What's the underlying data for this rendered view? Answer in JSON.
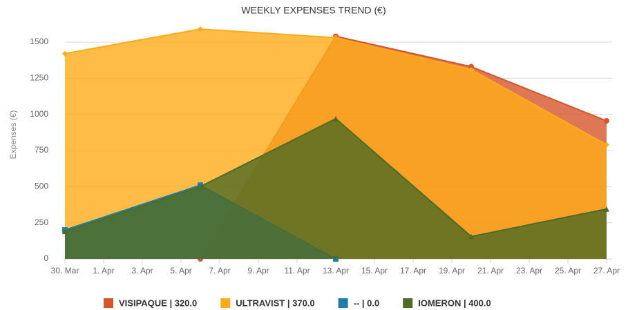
{
  "chart_data": {
    "type": "area",
    "title": "WEEKLY EXPENSES TREND (€)",
    "y_label": "Expenses (€)",
    "x": [
      "03-30",
      "04-06",
      "04-13",
      "04-20",
      "04-27"
    ],
    "xlim": [
      "03-30",
      "04-27"
    ],
    "xticks": [
      {
        "value": "03-30",
        "label": "30. Mar"
      },
      {
        "value": "04-01",
        "label": "1. Apr"
      },
      {
        "value": "04-03",
        "label": "3. Apr"
      },
      {
        "value": "04-05",
        "label": "5. Apr"
      },
      {
        "value": "04-07",
        "label": "7. Apr"
      },
      {
        "value": "04-09",
        "label": "9. Apr"
      },
      {
        "value": "04-11",
        "label": "11. Apr"
      },
      {
        "value": "04-13",
        "label": "13. Apr"
      },
      {
        "value": "04-15",
        "label": "15. Apr"
      },
      {
        "value": "04-17",
        "label": "17. Apr"
      },
      {
        "value": "04-19",
        "label": "19. Apr"
      },
      {
        "value": "04-21",
        "label": "21. Apr"
      },
      {
        "value": "04-23",
        "label": "23. Apr"
      },
      {
        "value": "04-25",
        "label": "25. Apr"
      },
      {
        "value": "04-27",
        "label": "27. Apr"
      }
    ],
    "ylim": [
      0,
      1600
    ],
    "yticks": [
      0,
      250,
      500,
      750,
      1000,
      1250,
      1500
    ],
    "grid": true,
    "series": [
      {
        "name": "VISIPAQUE | 320.0",
        "color": "#d4552c",
        "values": [
          null,
          0,
          1540,
          1330,
          955
        ]
      },
      {
        "name": "ULTRAVIST | 370.0",
        "color": "#ffab19",
        "values": [
          1420,
          1590,
          1530,
          1310,
          790
        ]
      },
      {
        "name": "-- | 0.0",
        "color": "#1f7ea8",
        "values": [
          200,
          510,
          0,
          null,
          null
        ]
      },
      {
        "name": "IOMERON | 400.0",
        "color": "#4e6a24",
        "values": [
          190,
          500,
          970,
          155,
          345
        ]
      }
    ]
  }
}
